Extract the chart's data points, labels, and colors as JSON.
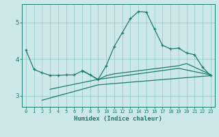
{
  "xlabel": "Humidex (Indice chaleur)",
  "bg_color": "#cce8e8",
  "line_color": "#1a7a6e",
  "grid_color": "#99cccc",
  "xlim": [
    -0.5,
    23.5
  ],
  "ylim": [
    2.7,
    5.5
  ],
  "yticks": [
    3,
    4,
    5
  ],
  "xticks": [
    0,
    1,
    2,
    3,
    4,
    5,
    6,
    7,
    8,
    9,
    10,
    11,
    12,
    13,
    14,
    15,
    16,
    17,
    18,
    19,
    20,
    21,
    22,
    23
  ],
  "series1_x": [
    0,
    1,
    2,
    3,
    4,
    5,
    6,
    7,
    8,
    9,
    10,
    11,
    12,
    13,
    14,
    15,
    16,
    17,
    18,
    19,
    20,
    21,
    22,
    23
  ],
  "series1_y": [
    4.25,
    3.72,
    3.63,
    3.56,
    3.56,
    3.57,
    3.57,
    3.68,
    3.57,
    3.45,
    3.82,
    4.35,
    4.72,
    5.1,
    5.3,
    5.28,
    4.82,
    4.38,
    4.28,
    4.3,
    4.17,
    4.12,
    3.78,
    3.55
  ],
  "series2_x": [
    2,
    9,
    23
  ],
  "series2_y": [
    2.88,
    3.3,
    3.55
  ],
  "series3_x": [
    3,
    9,
    19,
    23
  ],
  "series3_y": [
    3.18,
    3.45,
    3.75,
    3.57
  ],
  "series4_x": [
    7,
    9,
    10,
    11,
    19,
    20,
    23
  ],
  "series4_y": [
    3.7,
    3.44,
    3.55,
    3.6,
    3.82,
    3.88,
    3.58
  ]
}
